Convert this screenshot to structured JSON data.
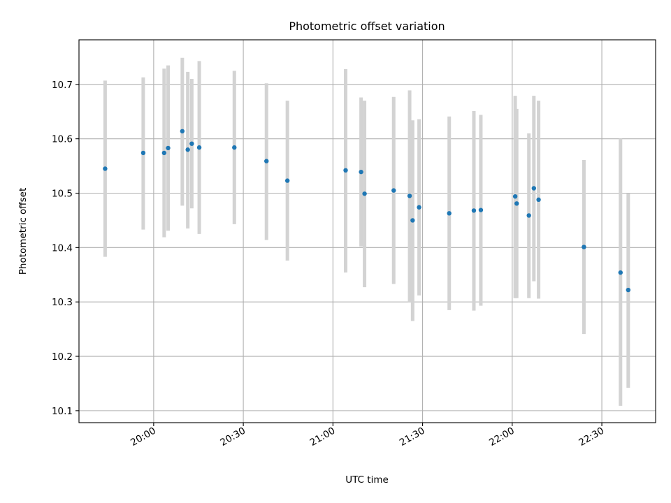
{
  "chart_data": {
    "type": "scatter",
    "title": "Photometric offset variation",
    "xlabel": "UTC time",
    "ylabel": "Photometric offset",
    "x_is_time": true,
    "xlim": [
      "19:35",
      "22:48"
    ],
    "ylim": [
      10.078,
      10.782
    ],
    "xticks": [
      "20:00",
      "20:30",
      "21:00",
      "21:30",
      "22:00",
      "22:30"
    ],
    "yticks": [
      10.1,
      10.2,
      10.3,
      10.4,
      10.5,
      10.6,
      10.7
    ],
    "ytick_labels": [
      "10.1",
      "10.2",
      "10.3",
      "10.4",
      "10.5",
      "10.6",
      "10.7"
    ],
    "grid": true,
    "colors": {
      "points": "#1f77b4",
      "errorbars": "#d3d3d3",
      "grid": "#b0b0b0"
    },
    "points": [
      {
        "x": "19:43:45",
        "y": 10.545,
        "ylow": 10.383,
        "yhigh": 10.707
      },
      {
        "x": "19:56:30",
        "y": 10.574,
        "ylow": 10.433,
        "yhigh": 10.713
      },
      {
        "x": "20:03:30",
        "y": 10.574,
        "ylow": 10.419,
        "yhigh": 10.729
      },
      {
        "x": "20:04:50",
        "y": 10.583,
        "ylow": 10.431,
        "yhigh": 10.735
      },
      {
        "x": "20:09:35",
        "y": 10.614,
        "ylow": 10.477,
        "yhigh": 10.749
      },
      {
        "x": "20:11:25",
        "y": 10.58,
        "ylow": 10.435,
        "yhigh": 10.723
      },
      {
        "x": "20:12:45",
        "y": 10.591,
        "ylow": 10.472,
        "yhigh": 10.71
      },
      {
        "x": "20:15:15",
        "y": 10.584,
        "ylow": 10.425,
        "yhigh": 10.743
      },
      {
        "x": "20:27:00",
        "y": 10.584,
        "ylow": 10.443,
        "yhigh": 10.725
      },
      {
        "x": "20:37:45",
        "y": 10.559,
        "ylow": 10.414,
        "yhigh": 10.702
      },
      {
        "x": "20:44:45",
        "y": 10.523,
        "ylow": 10.376,
        "yhigh": 10.67
      },
      {
        "x": "21:04:15",
        "y": 10.542,
        "ylow": 10.354,
        "yhigh": 10.728
      },
      {
        "x": "21:09:25",
        "y": 10.539,
        "ylow": 10.402,
        "yhigh": 10.676
      },
      {
        "x": "21:10:35",
        "y": 10.499,
        "ylow": 10.327,
        "yhigh": 10.67
      },
      {
        "x": "21:20:20",
        "y": 10.505,
        "ylow": 10.333,
        "yhigh": 10.677
      },
      {
        "x": "21:25:40",
        "y": 10.495,
        "ylow": 10.3,
        "yhigh": 10.689
      },
      {
        "x": "21:26:40",
        "y": 10.45,
        "ylow": 10.265,
        "yhigh": 10.634
      },
      {
        "x": "21:28:50",
        "y": 10.474,
        "ylow": 10.312,
        "yhigh": 10.636
      },
      {
        "x": "21:38:55",
        "y": 10.463,
        "ylow": 10.285,
        "yhigh": 10.641
      },
      {
        "x": "21:47:10",
        "y": 10.468,
        "ylow": 10.284,
        "yhigh": 10.651
      },
      {
        "x": "21:49:30",
        "y": 10.469,
        "ylow": 10.293,
        "yhigh": 10.644
      },
      {
        "x": "22:01:00",
        "y": 10.494,
        "ylow": 10.307,
        "yhigh": 10.679
      },
      {
        "x": "22:01:30",
        "y": 10.481,
        "ylow": 10.307,
        "yhigh": 10.655
      },
      {
        "x": "22:05:35",
        "y": 10.459,
        "ylow": 10.307,
        "yhigh": 10.61
      },
      {
        "x": "22:07:15",
        "y": 10.509,
        "ylow": 10.338,
        "yhigh": 10.679
      },
      {
        "x": "22:08:50",
        "y": 10.488,
        "ylow": 10.306,
        "yhigh": 10.67
      },
      {
        "x": "22:24:00",
        "y": 10.401,
        "ylow": 10.241,
        "yhigh": 10.561
      },
      {
        "x": "22:36:15",
        "y": 10.354,
        "ylow": 10.109,
        "yhigh": 10.6
      },
      {
        "x": "22:38:50",
        "y": 10.322,
        "ylow": 10.142,
        "yhigh": 10.499
      }
    ]
  }
}
